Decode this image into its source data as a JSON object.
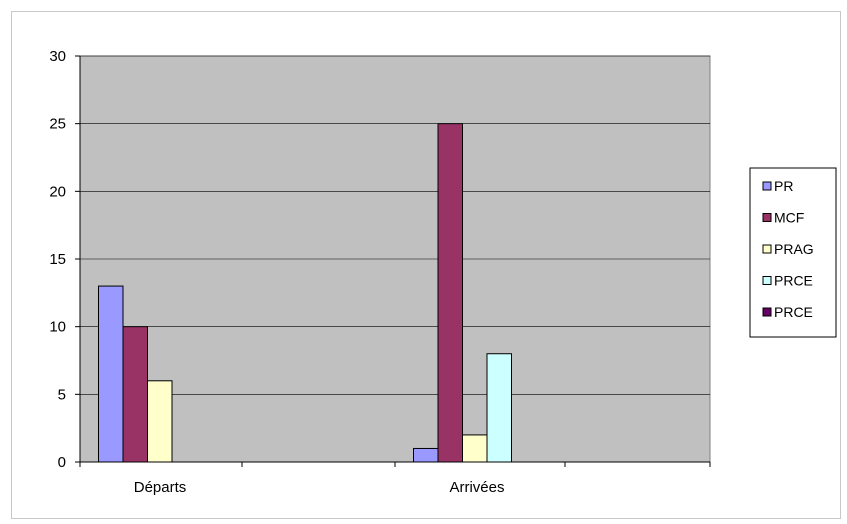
{
  "chart_data": {
    "type": "bar",
    "title": "",
    "xlabel": "",
    "ylabel": "",
    "categories": [
      "Départs",
      "Arrivées"
    ],
    "ylim": [
      0,
      30
    ],
    "yticks": [
      0,
      5,
      10,
      15,
      20,
      25,
      30
    ],
    "grid": true,
    "legend_position": "right",
    "plot_background": "#c0c0c0",
    "series": [
      {
        "name": "PR",
        "color": "#9999ff",
        "values": [
          13,
          1
        ]
      },
      {
        "name": "MCF",
        "color": "#993366",
        "values": [
          10,
          25
        ]
      },
      {
        "name": "PRAG",
        "color": "#ffffcc",
        "values": [
          6,
          2
        ]
      },
      {
        "name": "PRCE",
        "color": "#ccffff",
        "values": [
          0,
          8
        ]
      },
      {
        "name": "PRCE",
        "color": "#660066",
        "values": [
          0,
          0
        ]
      }
    ]
  }
}
